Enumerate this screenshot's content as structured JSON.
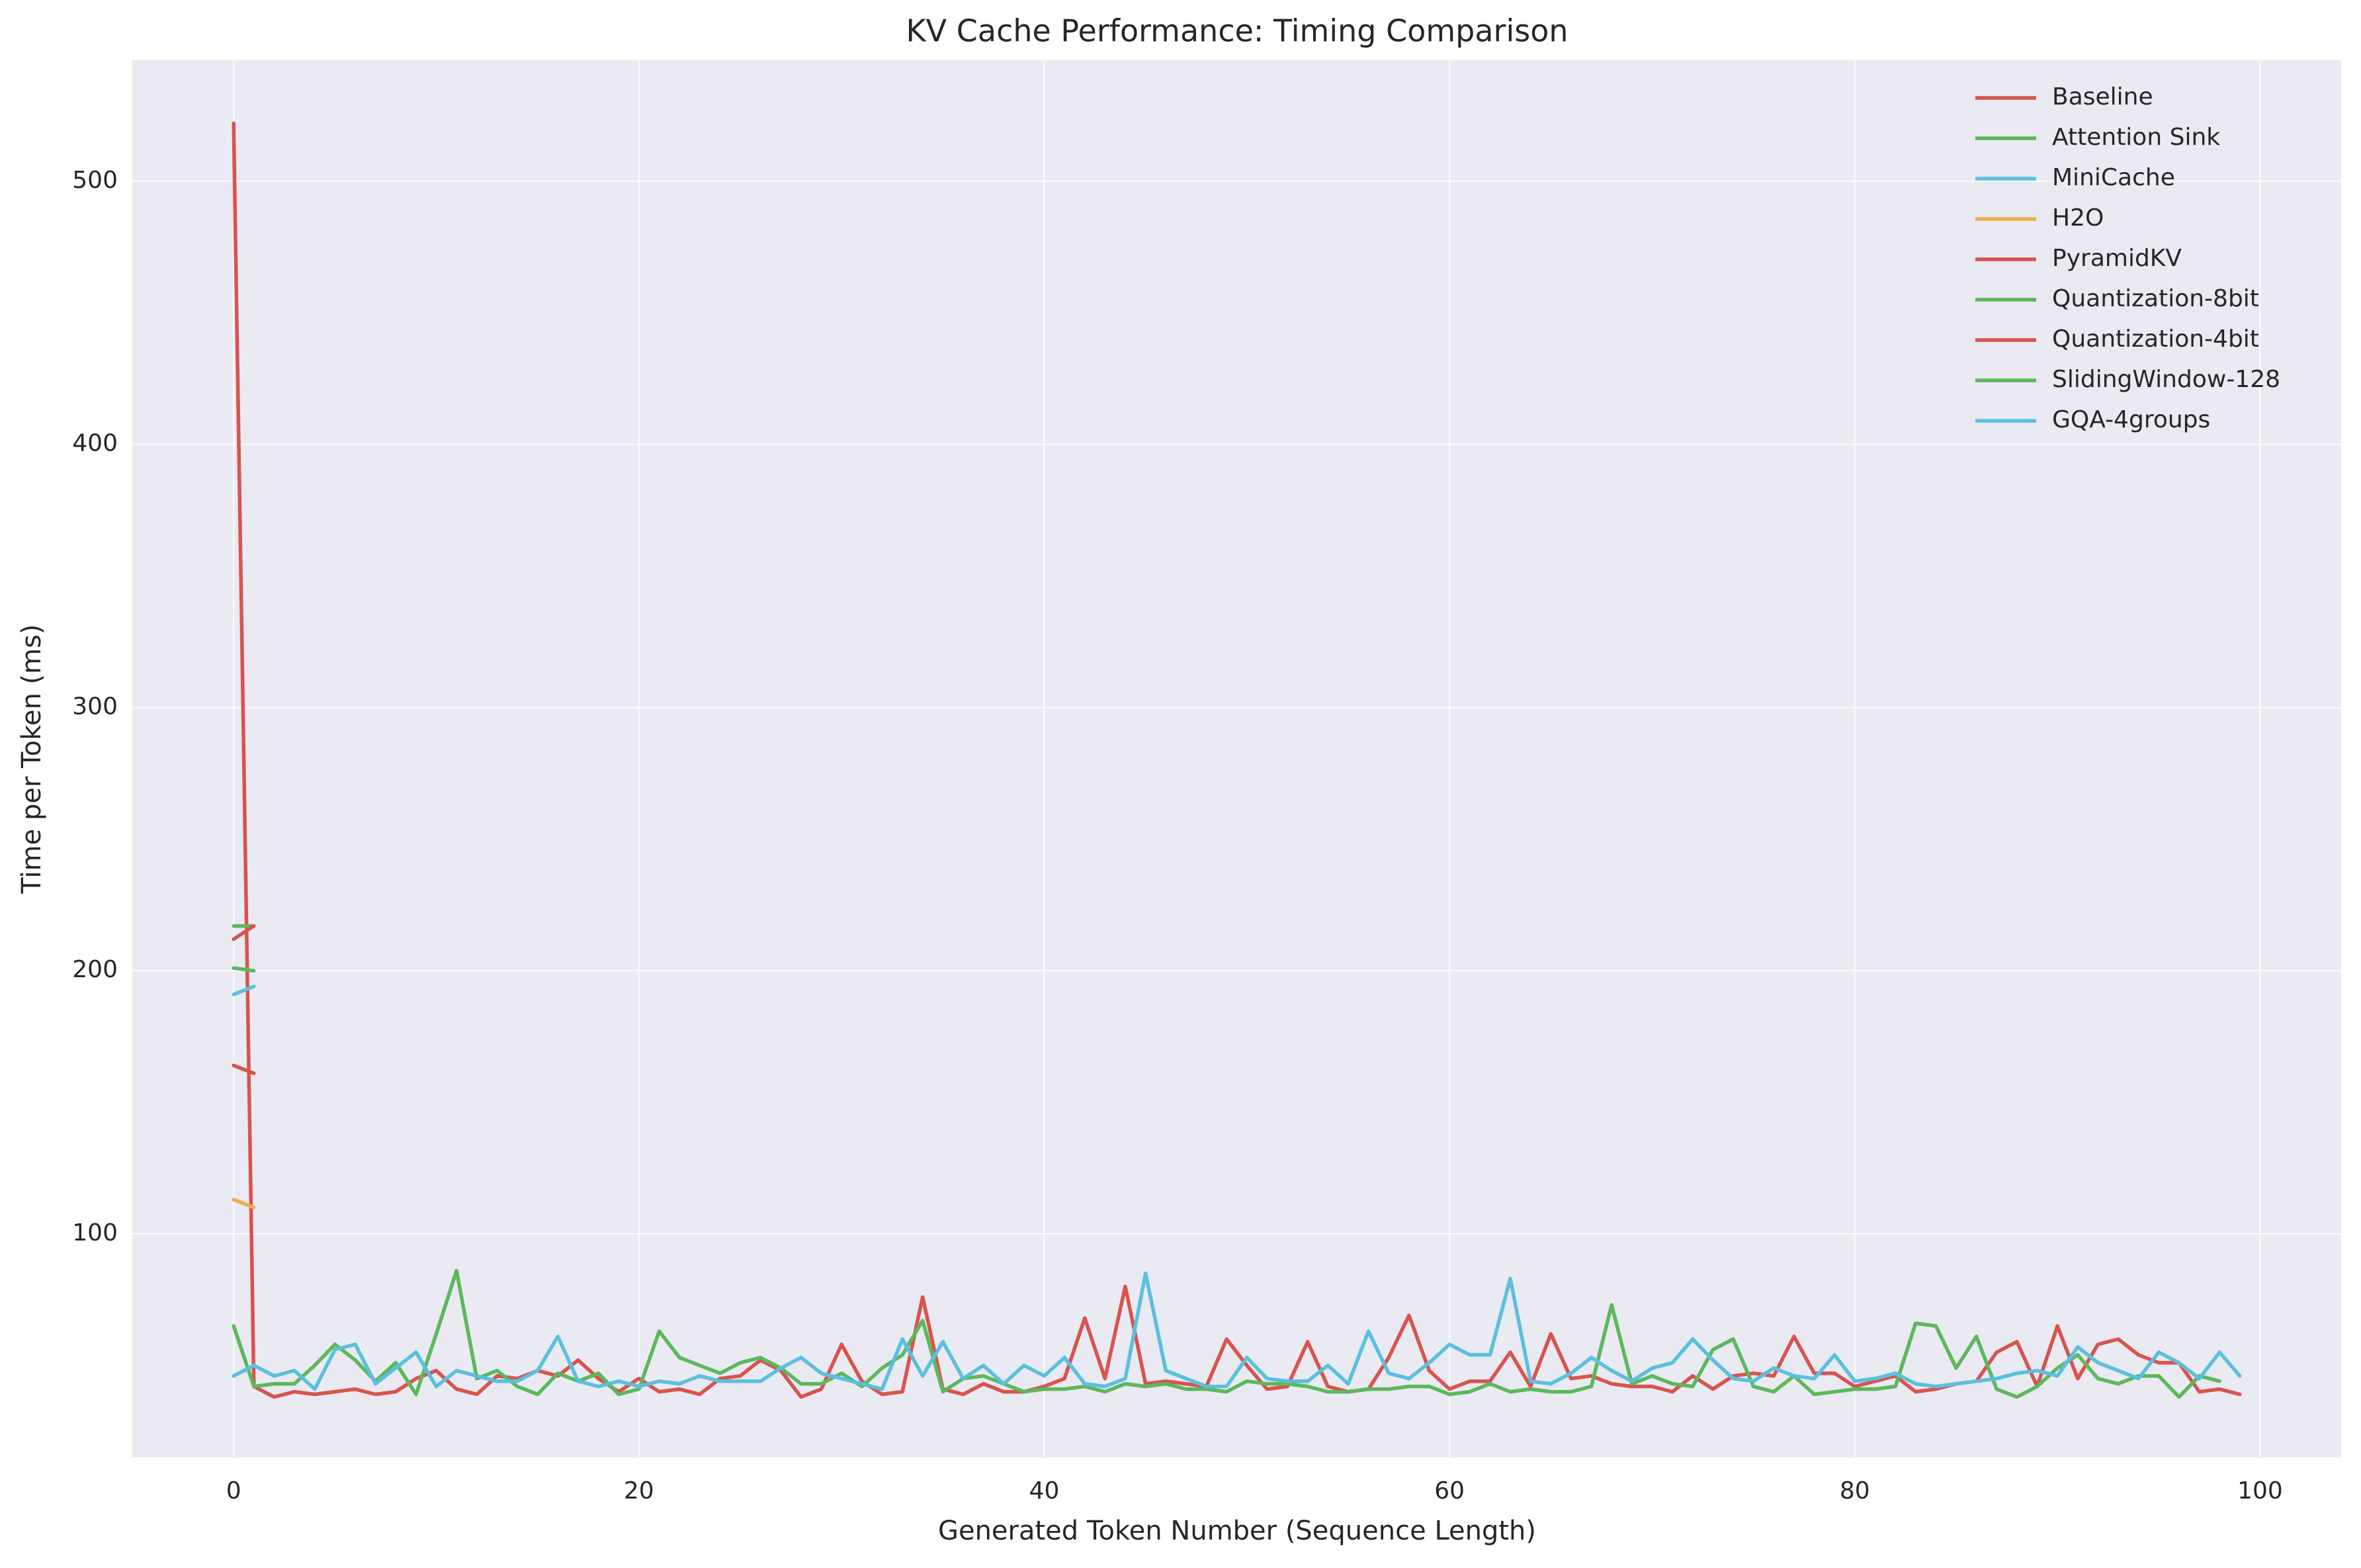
{
  "chart_data": {
    "type": "line",
    "title": "KV Cache Performance: Timing Comparison",
    "x_label": "Generated Token Number (Sequence Length)",
    "y_label": "Time per Token (ms)",
    "x": [
      0,
      1,
      2,
      3,
      4,
      5,
      6,
      7,
      8,
      9,
      10,
      11,
      12,
      13,
      14,
      15,
      16,
      17,
      18,
      19,
      20,
      21,
      22,
      23,
      24,
      25,
      26,
      27,
      28,
      29,
      30,
      31,
      32,
      33,
      34,
      35,
      36,
      37,
      38,
      39,
      40,
      41,
      42,
      43,
      44,
      45,
      46,
      47,
      48,
      49,
      50,
      51,
      52,
      53,
      54,
      55,
      56,
      57,
      58,
      59,
      60,
      61,
      62,
      63,
      64,
      65,
      66,
      67,
      68,
      69,
      70,
      71,
      72,
      73,
      74,
      75,
      76,
      77,
      78,
      79,
      80,
      81,
      82,
      83,
      84,
      85,
      86,
      87,
      88,
      89,
      90,
      91,
      92,
      93,
      94,
      95,
      96,
      97,
      98,
      99
    ],
    "series": [
      {
        "name": "Baseline",
        "color": "#d9534f",
        "values": [
          522,
          42,
          38,
          40,
          39,
          40,
          41,
          39,
          40,
          45,
          48,
          41,
          39,
          46,
          45,
          48,
          46,
          52,
          45,
          40,
          45,
          40,
          41,
          39,
          45,
          46,
          52,
          48,
          38,
          41,
          58,
          44,
          39,
          40,
          76,
          41,
          39,
          43,
          40,
          40,
          42,
          45,
          68,
          45,
          80,
          43,
          44,
          43,
          42,
          60,
          50,
          41,
          42,
          59,
          42,
          40,
          41,
          53,
          69,
          48,
          41,
          44,
          44,
          55,
          42,
          62,
          45,
          46,
          43,
          42,
          42,
          40,
          46,
          41,
          46,
          47,
          46,
          61,
          47,
          47,
          42,
          44,
          46,
          40,
          41,
          43,
          44,
          55,
          59,
          42,
          65,
          45,
          58,
          60,
          54,
          51,
          51,
          40,
          41,
          39
        ]
      },
      {
        "name": "Attention Sink",
        "color": "#5cb85c",
        "x": [
          0,
          1
        ],
        "values": [
          217,
          217
        ]
      },
      {
        "name": "MiniCache",
        "color": "#5bc0de",
        "x": [
          0,
          1
        ],
        "values": [
          191,
          194
        ]
      },
      {
        "name": "H2O",
        "color": "#f0ad4e",
        "x": [
          0,
          1
        ],
        "values": [
          113,
          110
        ]
      },
      {
        "name": "PyramidKV",
        "color": "#d9534f",
        "x": [
          0,
          1
        ],
        "values": [
          164,
          161
        ]
      },
      {
        "name": "Quantization-8bit",
        "color": "#5cb85c",
        "x": [
          0,
          1
        ],
        "values": [
          201,
          200
        ]
      },
      {
        "name": "Quantization-4bit",
        "color": "#d9534f",
        "x": [
          0,
          1
        ],
        "values": [
          212,
          217
        ]
      },
      {
        "name": "SlidingWindow-128",
        "color": "#5cb85c",
        "values": [
          65,
          42,
          43,
          43,
          50,
          58,
          52,
          44,
          51,
          39,
          62,
          86,
          45,
          48,
          42,
          39,
          47,
          44,
          47,
          39,
          41,
          63,
          53,
          50,
          47,
          51,
          53,
          49,
          43,
          43,
          47,
          42,
          49,
          54,
          67,
          40,
          45,
          46,
          43,
          40,
          41,
          41,
          42,
          40,
          43,
          42,
          43,
          41,
          41,
          40,
          44,
          43,
          43,
          42,
          40,
          40,
          41,
          41,
          42,
          42,
          39,
          40,
          43,
          40,
          41,
          40,
          40,
          42,
          73,
          43,
          46,
          43,
          42,
          56,
          60,
          42,
          40,
          46,
          39,
          40,
          41,
          41,
          42,
          66,
          65,
          49,
          61,
          41,
          38,
          42,
          49,
          54,
          45,
          43,
          46,
          46,
          38,
          46,
          44,
          null
        ]
      },
      {
        "name": "GQA-4groups",
        "color": "#5bc0de",
        "values": [
          46,
          50,
          46,
          48,
          41,
          56,
          58,
          43,
          49,
          55,
          42,
          48,
          46,
          44,
          44,
          48,
          61,
          44,
          42,
          44,
          42,
          44,
          43,
          46,
          44,
          44,
          44,
          49,
          53,
          47,
          45,
          43,
          41,
          60,
          46,
          59,
          45,
          50,
          43,
          50,
          46,
          53,
          43,
          42,
          45,
          85,
          48,
          45,
          42,
          42,
          53,
          45,
          44,
          44,
          50,
          43,
          63,
          47,
          45,
          51,
          58,
          54,
          54,
          83,
          44,
          43,
          47,
          53,
          48,
          44,
          49,
          51,
          60,
          52,
          45,
          44,
          49,
          46,
          45,
          54,
          44,
          45,
          47,
          43,
          42,
          43,
          44,
          45,
          47,
          48,
          46,
          57,
          51,
          48,
          45,
          55,
          51,
          45,
          55,
          46
        ]
      }
    ],
    "xlim": [
      -5,
      104
    ],
    "ylim": [
      15,
      546
    ],
    "xticks": [
      0,
      20,
      40,
      60,
      80,
      100
    ],
    "yticks": [
      100,
      200,
      300,
      400,
      500
    ],
    "grid": true,
    "legend": "upper right",
    "background": "#eaeaf2"
  }
}
